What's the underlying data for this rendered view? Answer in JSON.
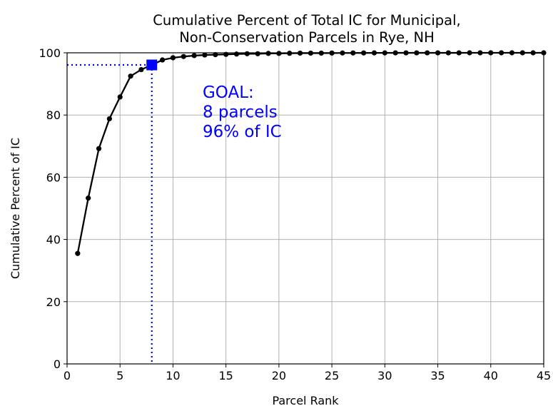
{
  "chart_data": {
    "type": "line",
    "title_lines": [
      "Cumulative Percent of Total IC for Municipal,",
      "Non-Conservation Parcels in Rye, NH"
    ],
    "xlabel": "Parcel Rank",
    "ylabel": "Cumulative Percent of IC",
    "xlim": [
      0,
      45
    ],
    "ylim": [
      0,
      100
    ],
    "xticks": [
      0,
      5,
      10,
      15,
      20,
      25,
      30,
      35,
      40,
      45
    ],
    "yticks": [
      0,
      20,
      40,
      60,
      80,
      100
    ],
    "xtick_labels": [
      "0",
      "5",
      "10",
      "15",
      "20",
      "25",
      "30",
      "35",
      "40",
      "45"
    ],
    "ytick_labels": [
      "0",
      "20",
      "40",
      "60",
      "80",
      "100"
    ],
    "grid": true,
    "series": [
      {
        "color": "#000000",
        "marker": "circle",
        "x": [
          1,
          2,
          3,
          4,
          5,
          6,
          7,
          8,
          9,
          10,
          11,
          12,
          13,
          14,
          15,
          16,
          17,
          18,
          19,
          20,
          21,
          22,
          23,
          24,
          25,
          26,
          27,
          28,
          29,
          30,
          31,
          32,
          33,
          34,
          35,
          36,
          37,
          38,
          39,
          40,
          41,
          42,
          43,
          44,
          45
        ],
        "y": [
          35.5,
          53.3,
          69.2,
          78.8,
          85.8,
          92.5,
          94.6,
          96.1,
          97.7,
          98.4,
          98.8,
          99.1,
          99.3,
          99.4,
          99.5,
          99.6,
          99.7,
          99.7,
          99.8,
          99.8,
          99.85,
          99.9,
          99.9,
          99.9,
          99.92,
          99.94,
          99.95,
          99.96,
          99.97,
          99.97,
          99.98,
          99.98,
          99.98,
          99.99,
          99.99,
          99.99,
          99.99,
          100,
          100,
          100,
          100,
          100,
          100,
          100,
          100
        ]
      }
    ],
    "goal_marker": {
      "x": 8,
      "y": 96.1,
      "color": "#0000ff",
      "marker": "square"
    },
    "annotation": {
      "lines": [
        "GOAL:",
        "8 parcels",
        "96% of IC"
      ],
      "color": "#0000ff",
      "x": 13,
      "y": 92
    }
  }
}
